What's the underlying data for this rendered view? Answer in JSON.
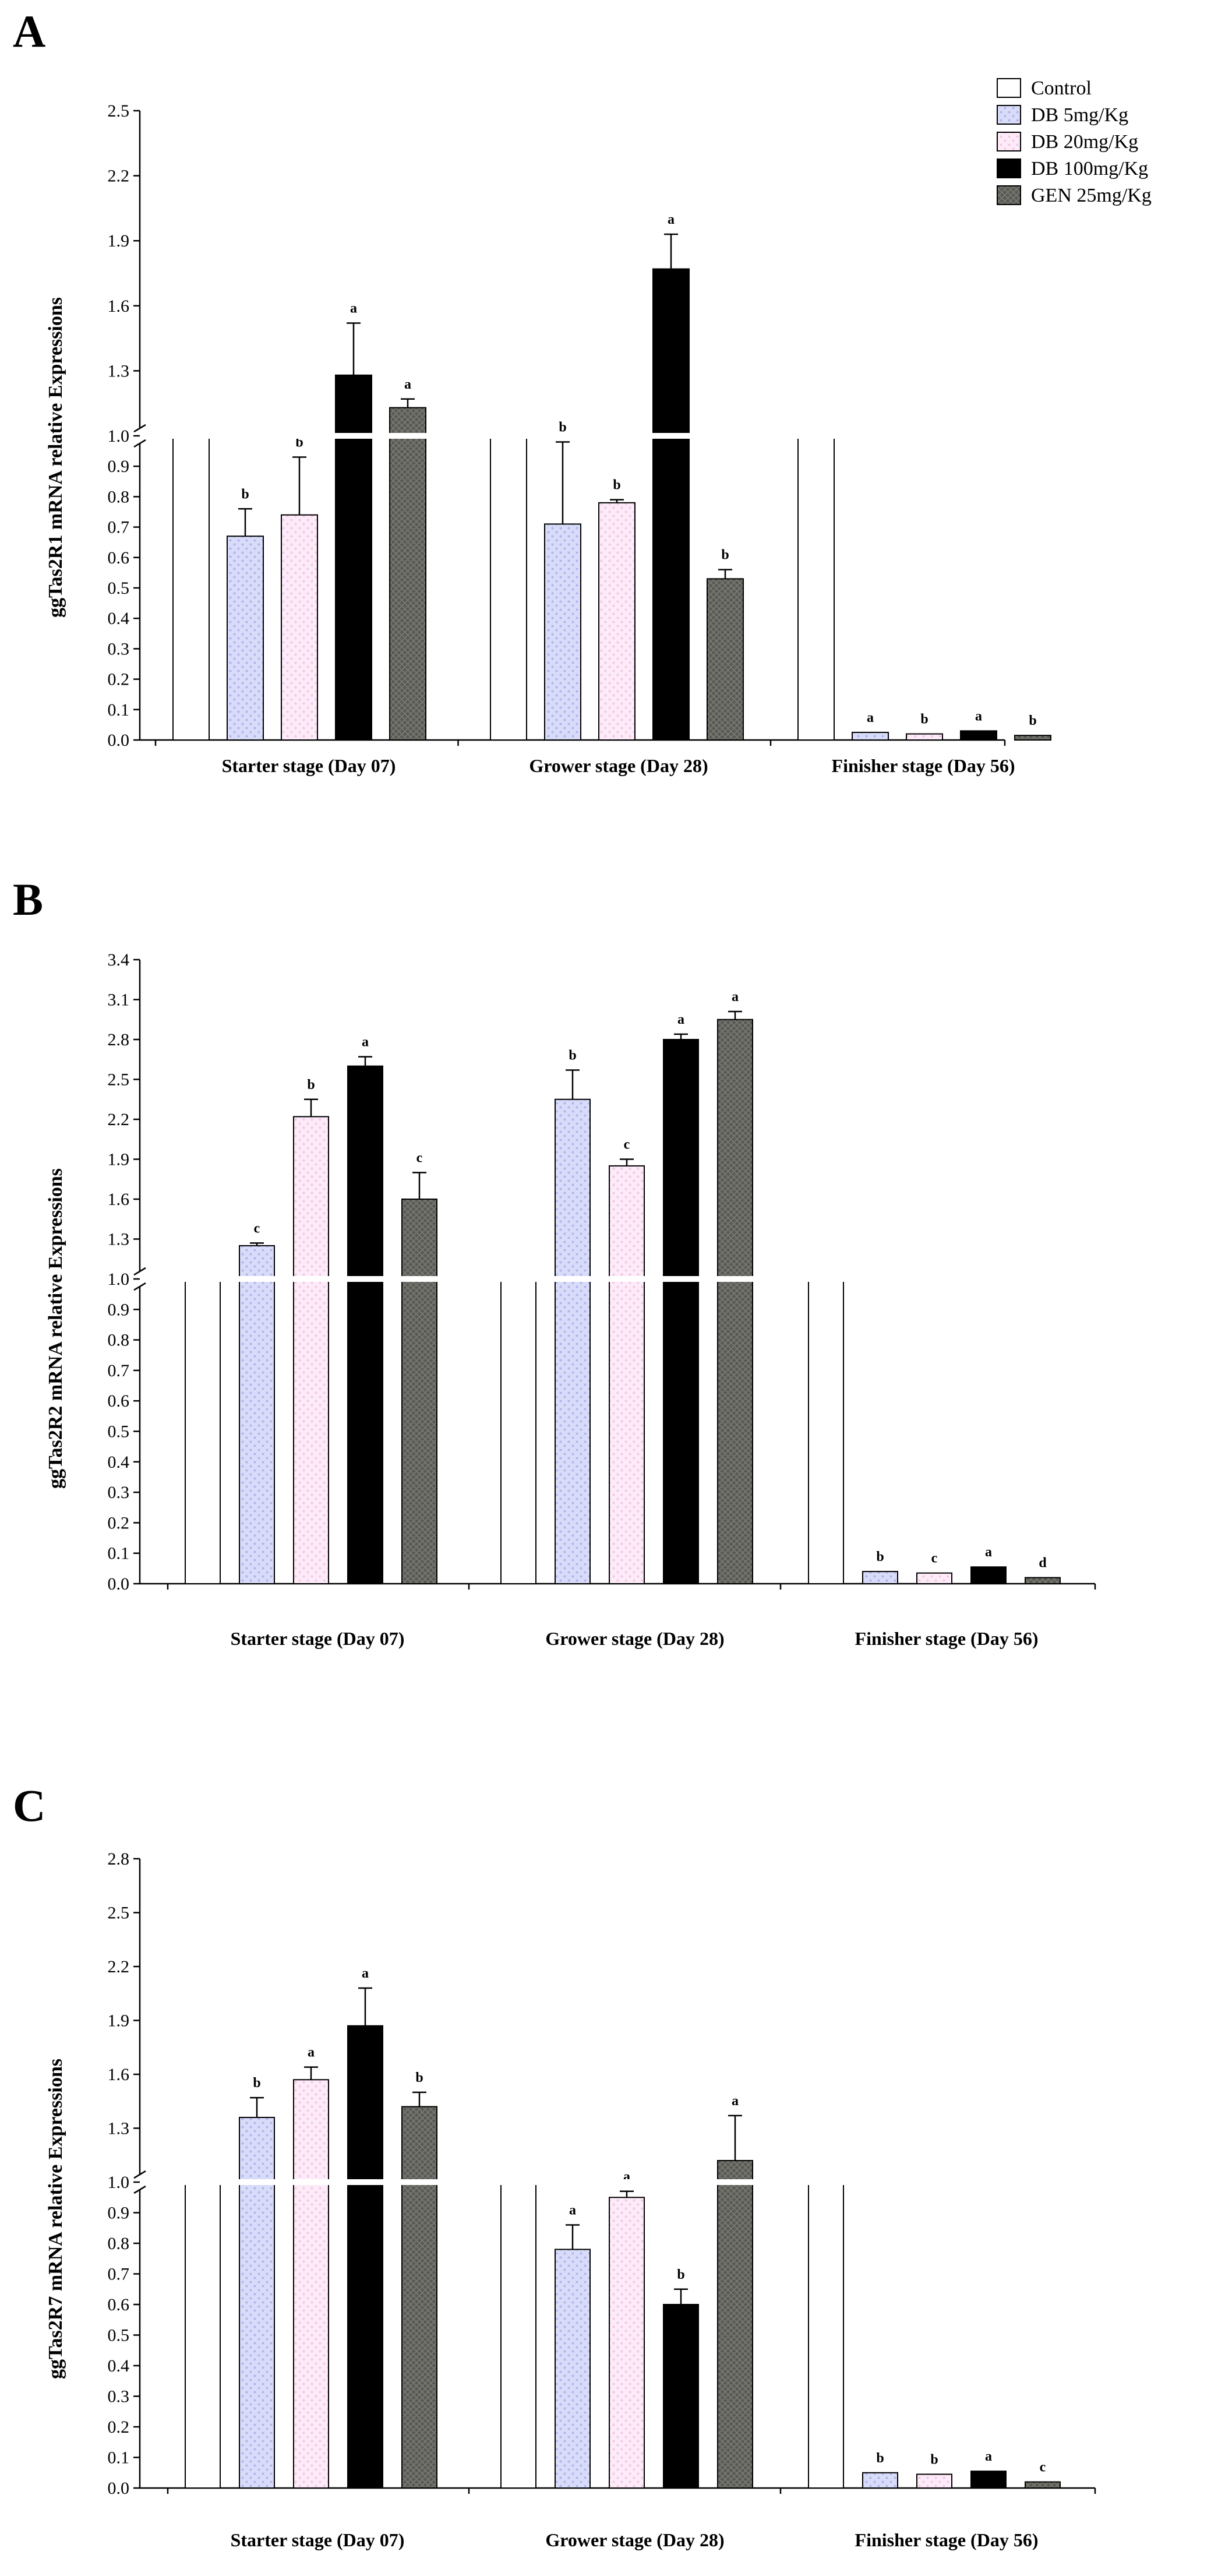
{
  "figure": {
    "legend": [
      {
        "name": "Control",
        "color": "#ffffff",
        "pattern": "solid"
      },
      {
        "name": "DB 5mg/Kg",
        "color": "#d9dcf8",
        "pattern": "dots-blue"
      },
      {
        "name": "DB 20mg/Kg",
        "color": "#fde8f7",
        "pattern": "dots-pink"
      },
      {
        "name": "DB 100mg/Kg",
        "color": "#000000",
        "pattern": "solid"
      },
      {
        "name": "GEN 25mg/Kg",
        "color": "#5a5a55",
        "pattern": "crosshatch"
      }
    ]
  },
  "chart_data": [
    {
      "panel": "A",
      "type": "bar",
      "ylabel": "ggTas2R1 mRNA relative Expressions",
      "categories": [
        "Starter stage (Day 07)",
        "Grower stage (Day 28)",
        "Finisher stage (Day 56)"
      ],
      "ylim": [
        0,
        2.5
      ],
      "axis_break_at": 1.0,
      "lower_ticks": [
        "0.0",
        "0.1",
        "0.2",
        "0.3",
        "0.4",
        "0.5",
        "0.6",
        "0.7",
        "0.8",
        "0.9",
        "1.0"
      ],
      "upper_ticks": [
        "1.3",
        "1.6",
        "1.9",
        "2.2",
        "2.5"
      ],
      "series": [
        {
          "name": "Control",
          "values": [
            1.0,
            1.0,
            1.0
          ],
          "errors": [
            0,
            0,
            0
          ],
          "letters": [
            "",
            "",
            ""
          ]
        },
        {
          "name": "DB 5mg/Kg",
          "values": [
            0.67,
            0.71,
            0.025
          ],
          "errors": [
            0.09,
            0.27,
            0.004
          ],
          "letters": [
            "b",
            "b",
            "a"
          ]
        },
        {
          "name": "DB 20mg/Kg",
          "values": [
            0.74,
            0.78,
            0.02
          ],
          "errors": [
            0.19,
            0.01,
            0.003
          ],
          "letters": [
            "b",
            "b",
            "b"
          ]
        },
        {
          "name": "DB 100mg/Kg",
          "values": [
            1.28,
            1.77,
            0.03
          ],
          "errors": [
            0.24,
            0.16,
            0.005
          ],
          "letters": [
            "a",
            "a",
            "a"
          ]
        },
        {
          "name": "GEN 25mg/Kg",
          "values": [
            1.13,
            0.53,
            0.015
          ],
          "errors": [
            0.04,
            0.03,
            0.003
          ],
          "letters": [
            "a",
            "b",
            "b"
          ]
        }
      ]
    },
    {
      "panel": "B",
      "type": "bar",
      "ylabel": "ggTas2R2 mRNA relative Expressions",
      "categories": [
        "Starter stage (Day 07)",
        "Grower stage (Day 28)",
        "Finisher stage (Day 56)"
      ],
      "ylim": [
        0,
        3.4
      ],
      "axis_break_at": 1.0,
      "lower_ticks": [
        "0.0",
        "0.1",
        "0.2",
        "0.3",
        "0.4",
        "0.5",
        "0.6",
        "0.7",
        "0.8",
        "0.9",
        "1.0"
      ],
      "upper_ticks": [
        "1.3",
        "1.6",
        "1.9",
        "2.2",
        "2.5",
        "2.8",
        "3.1",
        "3.4"
      ],
      "series": [
        {
          "name": "Control",
          "values": [
            1.0,
            1.0,
            1.0
          ],
          "errors": [
            0,
            0,
            0
          ],
          "letters": [
            "",
            "",
            ""
          ]
        },
        {
          "name": "DB 5mg/Kg",
          "values": [
            1.25,
            2.35,
            0.04
          ],
          "errors": [
            0.02,
            0.22,
            0.005
          ],
          "letters": [
            "c",
            "b",
            "b"
          ]
        },
        {
          "name": "DB 20mg/Kg",
          "values": [
            2.22,
            1.85,
            0.035
          ],
          "errors": [
            0.13,
            0.05,
            0.004
          ],
          "letters": [
            "b",
            "c",
            "c"
          ]
        },
        {
          "name": "DB 100mg/Kg",
          "values": [
            2.6,
            2.8,
            0.055
          ],
          "errors": [
            0.07,
            0.04,
            0.005
          ],
          "letters": [
            "a",
            "a",
            "a"
          ]
        },
        {
          "name": "GEN 25mg/Kg",
          "values": [
            1.6,
            2.95,
            0.02
          ],
          "errors": [
            0.2,
            0.06,
            0.003
          ],
          "letters": [
            "c",
            "a",
            "d"
          ]
        }
      ]
    },
    {
      "panel": "C",
      "type": "bar",
      "ylabel": "ggTas2R7 mRNA relative Expressions",
      "categories": [
        "Starter stage (Day 07)",
        "Grower stage (Day 28)",
        "Finisher stage (Day 56)"
      ],
      "ylim": [
        0,
        2.8
      ],
      "axis_break_at": 1.0,
      "lower_ticks": [
        "0.0",
        "0.1",
        "0.2",
        "0.3",
        "0.4",
        "0.5",
        "0.6",
        "0.7",
        "0.8",
        "0.9",
        "1.0"
      ],
      "upper_ticks": [
        "1.3",
        "1.6",
        "1.9",
        "2.2",
        "2.5",
        "2.8"
      ],
      "series": [
        {
          "name": "Control",
          "values": [
            1.0,
            1.0,
            1.0
          ],
          "errors": [
            0,
            0,
            0
          ],
          "letters": [
            "",
            "",
            ""
          ]
        },
        {
          "name": "DB 5mg/Kg",
          "values": [
            1.36,
            0.78,
            0.05
          ],
          "errors": [
            0.11,
            0.08,
            0.005
          ],
          "letters": [
            "b",
            "a",
            "b"
          ]
        },
        {
          "name": "DB 20mg/Kg",
          "values": [
            1.57,
            0.95,
            0.045
          ],
          "errors": [
            0.07,
            0.02,
            0.004
          ],
          "letters": [
            "a",
            "a",
            "b"
          ]
        },
        {
          "name": "DB 100mg/Kg",
          "values": [
            1.87,
            0.6,
            0.055
          ],
          "errors": [
            0.21,
            0.05,
            0.005
          ],
          "letters": [
            "a",
            "b",
            "a"
          ]
        },
        {
          "name": "GEN 25mg/Kg",
          "values": [
            1.42,
            1.12,
            0.02
          ],
          "errors": [
            0.08,
            0.25,
            0.003
          ],
          "letters": [
            "b",
            "a",
            "c"
          ]
        }
      ]
    }
  ]
}
